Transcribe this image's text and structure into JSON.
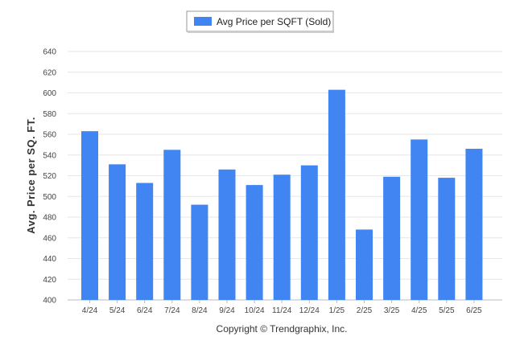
{
  "chart_data": {
    "type": "bar",
    "title": "",
    "xlabel": "",
    "ylabel": "Avg. Price per SQ. FT.",
    "categories": [
      "4/24",
      "5/24",
      "6/24",
      "7/24",
      "8/24",
      "9/24",
      "10/24",
      "11/24",
      "12/24",
      "1/25",
      "2/25",
      "3/25",
      "4/25",
      "5/25",
      "6/25"
    ],
    "series": [
      {
        "name": "Avg Price per SQFT (Sold)",
        "color": "#4185F3",
        "values": [
          563,
          531,
          513,
          545,
          492,
          526,
          511,
          521,
          530,
          603,
          468,
          519,
          555,
          518,
          546
        ]
      }
    ],
    "ylim": [
      400,
      640
    ],
    "yticks": [
      400,
      420,
      440,
      460,
      480,
      500,
      520,
      540,
      560,
      580,
      600,
      620,
      640
    ],
    "grid": true,
    "legend_position": "top-center",
    "footer": "Copyright © Trendgraphix, Inc."
  }
}
